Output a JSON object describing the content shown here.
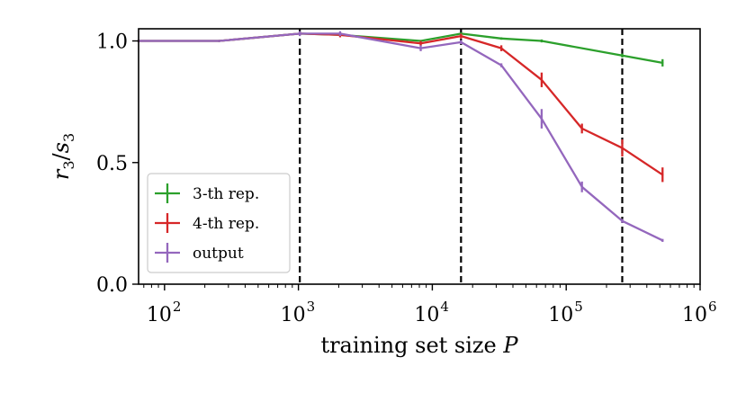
{
  "chart_data": {
    "type": "line",
    "xlabel": "training set size",
    "xlabel_var": "P",
    "ylabel_num": "r",
    "ylabel_num_sub": "3",
    "ylabel_den": "s",
    "ylabel_den_sub": "3",
    "xscale": "log",
    "xlim": [
      64,
      1000000
    ],
    "ylim": [
      0.0,
      1.05
    ],
    "x_ticks": [
      {
        "base": "10",
        "exp": "2",
        "value": 100
      },
      {
        "base": "10",
        "exp": "3",
        "value": 1000
      },
      {
        "base": "10",
        "exp": "4",
        "value": 10000
      },
      {
        "base": "10",
        "exp": "5",
        "value": 100000
      },
      {
        "base": "10",
        "exp": "6",
        "value": 1000000
      }
    ],
    "y_ticks": [
      {
        "label": "0.0",
        "value": 0.0
      },
      {
        "label": "0.5",
        "value": 0.5
      },
      {
        "label": "1.0",
        "value": 1.0
      }
    ],
    "vlines": [
      1024,
      16384,
      262144
    ],
    "legend_position": "lower-left",
    "series": [
      {
        "name": "3-th rep.",
        "color": "#2ca02c",
        "points": [
          {
            "x": 64,
            "y": 1.0,
            "err": 0.004
          },
          {
            "x": 256,
            "y": 1.0,
            "err": 0.004
          },
          {
            "x": 1024,
            "y": 1.03,
            "err": 0.004
          },
          {
            "x": 2048,
            "y": 1.025,
            "err": 0.004
          },
          {
            "x": 8192,
            "y": 1.0,
            "err": 0.004
          },
          {
            "x": 16384,
            "y": 1.03,
            "err": 0.005
          },
          {
            "x": 32768,
            "y": 1.01,
            "err": 0.005
          },
          {
            "x": 65536,
            "y": 1.0,
            "err": 0.006
          },
          {
            "x": 262144,
            "y": 0.94,
            "err": 0.008
          },
          {
            "x": 524288,
            "y": 0.91,
            "err": 0.015
          }
        ]
      },
      {
        "name": "4-th rep.",
        "color": "#d62728",
        "points": [
          {
            "x": 64,
            "y": 1.0,
            "err": 0.004
          },
          {
            "x": 256,
            "y": 1.0,
            "err": 0.004
          },
          {
            "x": 1024,
            "y": 1.03,
            "err": 0.005
          },
          {
            "x": 2048,
            "y": 1.025,
            "err": 0.01
          },
          {
            "x": 8192,
            "y": 0.99,
            "err": 0.01
          },
          {
            "x": 16384,
            "y": 1.02,
            "err": 0.01
          },
          {
            "x": 32768,
            "y": 0.97,
            "err": 0.012
          },
          {
            "x": 65536,
            "y": 0.84,
            "err": 0.03
          },
          {
            "x": 131072,
            "y": 0.64,
            "err": 0.02
          },
          {
            "x": 262144,
            "y": 0.56,
            "err": 0.035
          },
          {
            "x": 524288,
            "y": 0.45,
            "err": 0.03
          }
        ]
      },
      {
        "name": "output",
        "color": "#9467bd",
        "points": [
          {
            "x": 64,
            "y": 1.0,
            "err": 0.004
          },
          {
            "x": 256,
            "y": 1.0,
            "err": 0.004
          },
          {
            "x": 1024,
            "y": 1.03,
            "err": 0.01
          },
          {
            "x": 2048,
            "y": 1.03,
            "err": 0.01
          },
          {
            "x": 8192,
            "y": 0.97,
            "err": 0.012
          },
          {
            "x": 16384,
            "y": 0.995,
            "err": 0.008
          },
          {
            "x": 32768,
            "y": 0.9,
            "err": 0.008
          },
          {
            "x": 65536,
            "y": 0.68,
            "err": 0.04
          },
          {
            "x": 131072,
            "y": 0.4,
            "err": 0.022
          },
          {
            "x": 262144,
            "y": 0.26,
            "err": 0.008
          },
          {
            "x": 524288,
            "y": 0.18,
            "err": 0.006
          }
        ]
      }
    ]
  }
}
